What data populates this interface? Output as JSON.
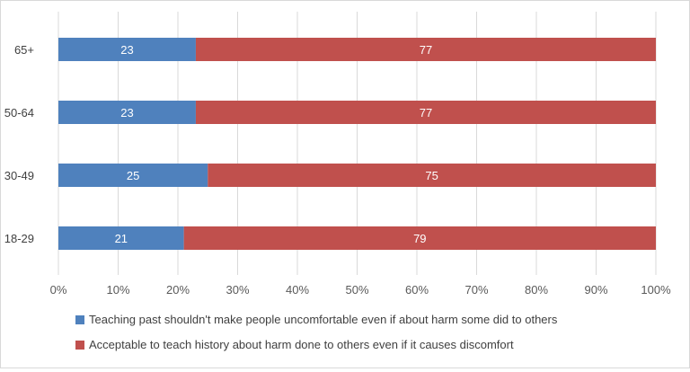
{
  "chart_data": {
    "type": "bar",
    "orientation": "horizontal",
    "stacked": true,
    "percent_axis": true,
    "categories": [
      "65+",
      "50-64",
      "30-49",
      "18-29"
    ],
    "series": [
      {
        "name": "Teaching past shouldn't make people uncomfortable even if about harm some did to others",
        "values": [
          23,
          23,
          25,
          21
        ],
        "color": "#4F81BD"
      },
      {
        "name": "Acceptable to teach history about harm done to others even if it causes discomfort",
        "values": [
          77,
          77,
          75,
          79
        ],
        "color": "#C0504D"
      }
    ],
    "x_ticks": [
      "0%",
      "10%",
      "20%",
      "30%",
      "40%",
      "50%",
      "60%",
      "70%",
      "80%",
      "90%",
      "100%"
    ],
    "xlim": [
      0,
      100
    ],
    "grid": true,
    "legend_position": "bottom"
  }
}
